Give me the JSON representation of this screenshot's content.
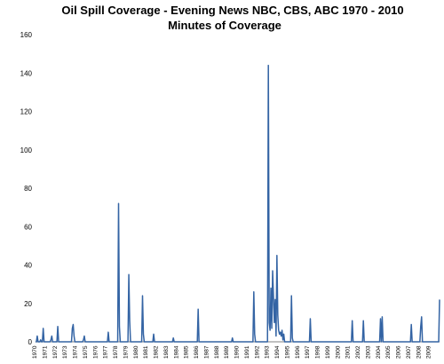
{
  "chart_data": {
    "type": "line",
    "title_line1": "Oil Spill Coverage -   Evening News NBC, CBS, ABC 1970 - 2010",
    "title_line2": "Minutes of Coverage",
    "xlabel": "",
    "ylabel": "",
    "ylim": [
      0,
      160
    ],
    "yticks": [
      0,
      20,
      40,
      60,
      80,
      100,
      120,
      140,
      160
    ],
    "grid": "off",
    "legend": "none",
    "color": "#3464a4",
    "x_tick_labels": [
      "1970",
      "1971",
      "1972",
      "1973",
      "1974",
      "1975",
      "1976",
      "1977",
      "1978",
      "1979",
      "1980",
      "1981",
      "1982",
      "1983",
      "1984",
      "1985",
      "1986",
      "1987",
      "1988",
      "1989",
      "1990",
      "1991",
      "1992",
      "1993",
      "1994",
      "1995",
      "1996",
      "1997",
      "1998",
      "1999",
      "2000",
      "2001",
      "2002",
      "2003",
      "2004",
      "2005",
      "2006",
      "2007",
      "2008",
      "2009"
    ],
    "x_tick_labels_note": "",
    "series": [
      {
        "values": [
          0,
          0,
          3,
          0,
          0,
          0,
          1,
          0,
          0,
          7,
          0,
          0,
          0,
          0,
          0,
          0,
          0,
          0,
          1,
          3,
          0,
          0,
          0,
          0,
          0,
          0,
          8,
          0,
          0,
          0,
          0,
          0,
          0,
          0,
          0,
          0,
          0,
          0,
          0,
          0,
          0,
          0,
          0,
          7,
          9,
          3,
          0,
          0,
          0,
          0,
          0,
          0,
          0,
          0,
          0,
          0,
          1,
          3,
          0,
          0,
          0,
          0,
          0,
          0,
          0,
          0,
          0,
          0,
          0,
          0,
          0,
          0,
          0,
          0,
          0,
          0,
          0,
          0,
          0,
          0,
          0,
          0,
          0,
          0,
          0,
          5,
          0,
          0,
          0,
          0,
          0,
          0,
          0,
          0,
          0,
          0,
          0,
          72,
          8,
          0,
          0,
          0,
          0,
          0,
          0,
          0,
          0,
          0,
          0,
          35,
          11,
          0,
          0,
          0,
          0,
          0,
          0,
          0,
          0,
          0,
          0,
          0,
          0,
          0,
          0,
          24,
          4,
          0,
          0,
          0,
          0,
          0,
          0,
          0,
          0,
          0,
          0,
          0,
          4,
          0,
          0,
          0,
          0,
          0,
          0,
          0,
          0,
          0,
          0,
          0,
          0,
          0,
          0,
          0,
          0,
          0,
          0,
          0,
          0,
          0,
          0,
          2,
          0,
          0,
          0,
          0,
          0,
          0,
          0,
          0,
          0,
          0,
          0,
          0,
          0,
          0,
          0,
          0,
          0,
          0,
          0,
          0,
          0,
          0,
          0,
          0,
          0,
          0,
          0,
          0,
          17,
          0,
          0,
          0,
          0,
          0,
          0,
          0,
          0,
          0,
          0,
          0,
          0,
          0,
          0,
          0,
          0,
          0,
          0,
          0,
          0,
          0,
          0,
          0,
          0,
          0,
          0,
          0,
          0,
          0,
          0,
          0,
          0,
          0,
          0,
          0,
          0,
          0,
          0,
          0,
          2,
          0,
          0,
          0,
          0,
          0,
          0,
          0,
          0,
          0,
          0,
          0,
          0,
          0,
          0,
          0,
          0,
          0,
          0,
          0,
          0,
          0,
          0,
          0,
          0,
          26,
          4,
          0,
          0,
          0,
          0,
          0,
          0,
          0,
          0,
          0,
          0,
          0,
          0,
          0,
          0,
          0,
          144,
          10,
          6,
          28,
          7,
          37,
          23,
          10,
          22,
          3,
          45,
          14,
          6,
          4,
          5,
          3,
          6,
          1,
          4,
          0,
          0,
          0,
          0,
          0,
          0,
          0,
          0,
          24,
          2,
          0,
          0,
          0,
          0,
          0,
          0,
          0,
          0,
          0,
          0,
          0,
          0,
          0,
          0,
          0,
          0,
          0,
          0,
          0,
          0,
          12,
          0,
          0,
          0,
          0,
          0,
          0,
          0,
          0,
          0,
          0,
          0,
          0,
          0,
          0,
          0,
          0,
          0,
          0,
          0,
          0,
          0,
          0,
          0,
          0,
          0,
          0,
          0,
          0,
          0,
          0,
          0,
          0,
          0,
          0,
          0,
          0,
          0,
          0,
          0,
          0,
          0,
          0,
          0,
          0,
          0,
          0,
          0,
          0,
          11,
          0,
          0,
          0,
          0,
          0,
          0,
          0,
          0,
          0,
          0,
          0,
          0,
          11,
          0,
          0,
          0,
          0,
          0,
          0,
          0,
          0,
          0,
          0,
          0,
          0,
          0,
          0,
          0,
          0,
          0,
          0,
          0,
          12,
          0,
          13,
          0,
          0,
          0,
          0,
          0,
          0,
          0,
          0,
          0,
          0,
          0,
          0,
          0,
          0,
          0,
          0,
          0,
          0,
          0,
          0,
          0,
          0,
          0,
          0,
          0,
          0,
          0,
          0,
          0,
          0,
          0,
          0,
          0,
          9,
          0,
          0,
          0,
          0,
          0,
          0,
          0,
          0,
          0,
          0,
          8,
          13,
          0,
          0,
          0,
          0,
          0,
          0,
          0,
          0,
          0,
          0,
          0,
          0,
          0,
          0,
          0,
          0,
          0,
          0,
          0,
          0,
          22
        ]
      }
    ]
  }
}
